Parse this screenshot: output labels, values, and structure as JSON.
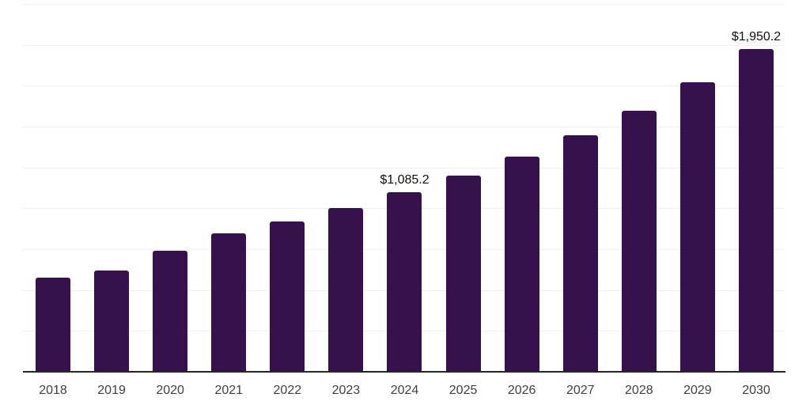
{
  "chart_data": {
    "type": "bar",
    "title": "",
    "xlabel": "",
    "ylabel": "",
    "categories": [
      "2018",
      "2019",
      "2020",
      "2021",
      "2022",
      "2023",
      "2024",
      "2025",
      "2026",
      "2027",
      "2028",
      "2029",
      "2030"
    ],
    "values": [
      570,
      612,
      731,
      837,
      908,
      990,
      1085.2,
      1186,
      1300,
      1430,
      1578,
      1750,
      1950.2
    ],
    "data_labels": {
      "2024": "$1,085.2",
      "2030": "$1,950.2"
    },
    "ylim": [
      0,
      2222
    ],
    "gridline_count": 9,
    "grid": "horizontal",
    "legend": "none",
    "colors": {
      "bar": "#36114C",
      "gridline": "#efefef",
      "axis": "#262626",
      "data_label_text": "#111111",
      "x_label_text": "#404040",
      "background": "#ffffff"
    }
  }
}
